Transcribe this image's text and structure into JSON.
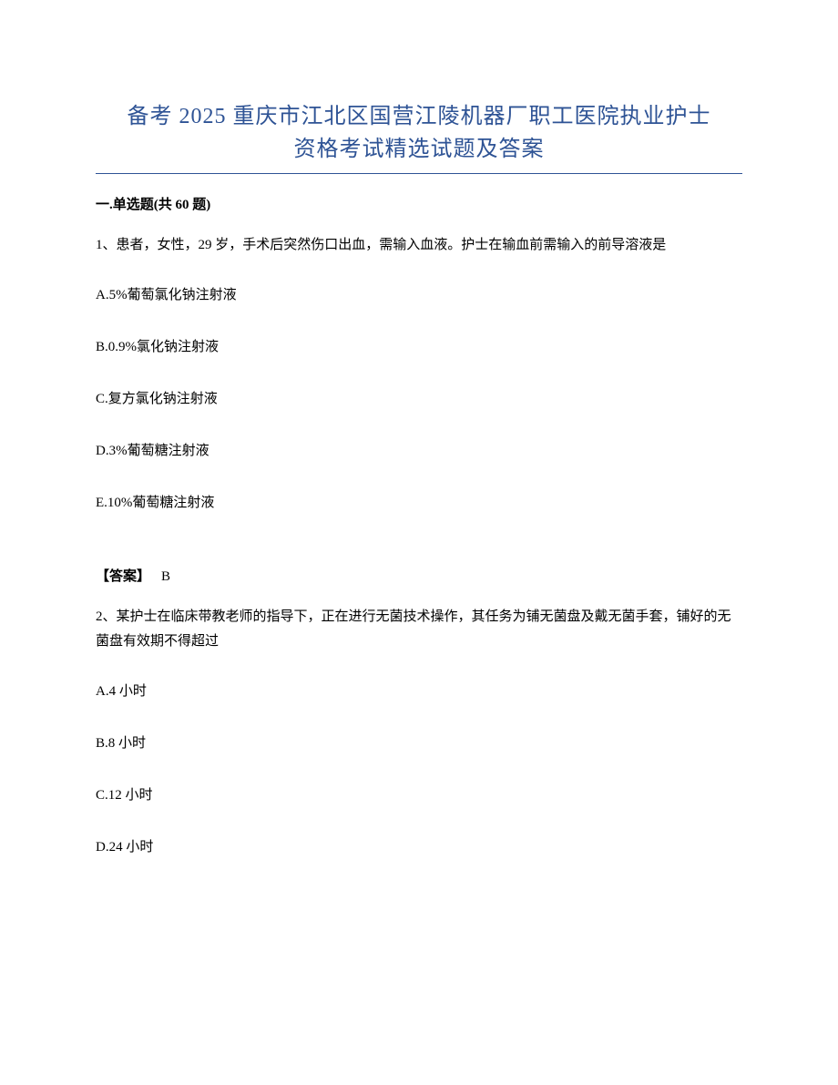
{
  "title": {
    "line1": "备考 2025 重庆市江北区国营江陵机器厂职工医院执业护士",
    "line2": "资格考试精选试题及答案",
    "color": "#2e5395",
    "fontsize": 24,
    "underline_color": "#2e5395"
  },
  "section": {
    "label": "一.单选题(共 60 题)"
  },
  "body_fontsize": 15,
  "text_color": "#000000",
  "background_color": "#ffffff",
  "questions": [
    {
      "number": "1、",
      "stem": "患者，女性，29 岁，手术后突然伤口出血，需输入血液。护士在输血前需输入的前导溶液是",
      "options": [
        "A.5%葡萄氯化钠注射液",
        "B.0.9%氯化钠注射液",
        "C.复方氯化钠注射液",
        "D.3%葡萄糖注射液",
        "E.10%葡萄糖注射液"
      ],
      "answer_label": "【答案】",
      "answer_value": "B"
    },
    {
      "number": "2、",
      "stem": "某护士在临床带教老师的指导下，正在进行无菌技术操作，其任务为铺无菌盘及戴无菌手套，铺好的无菌盘有效期不得超过",
      "options": [
        "A.4 小时",
        "B.8 小时",
        "C.12 小时",
        "D.24 小时"
      ]
    }
  ]
}
